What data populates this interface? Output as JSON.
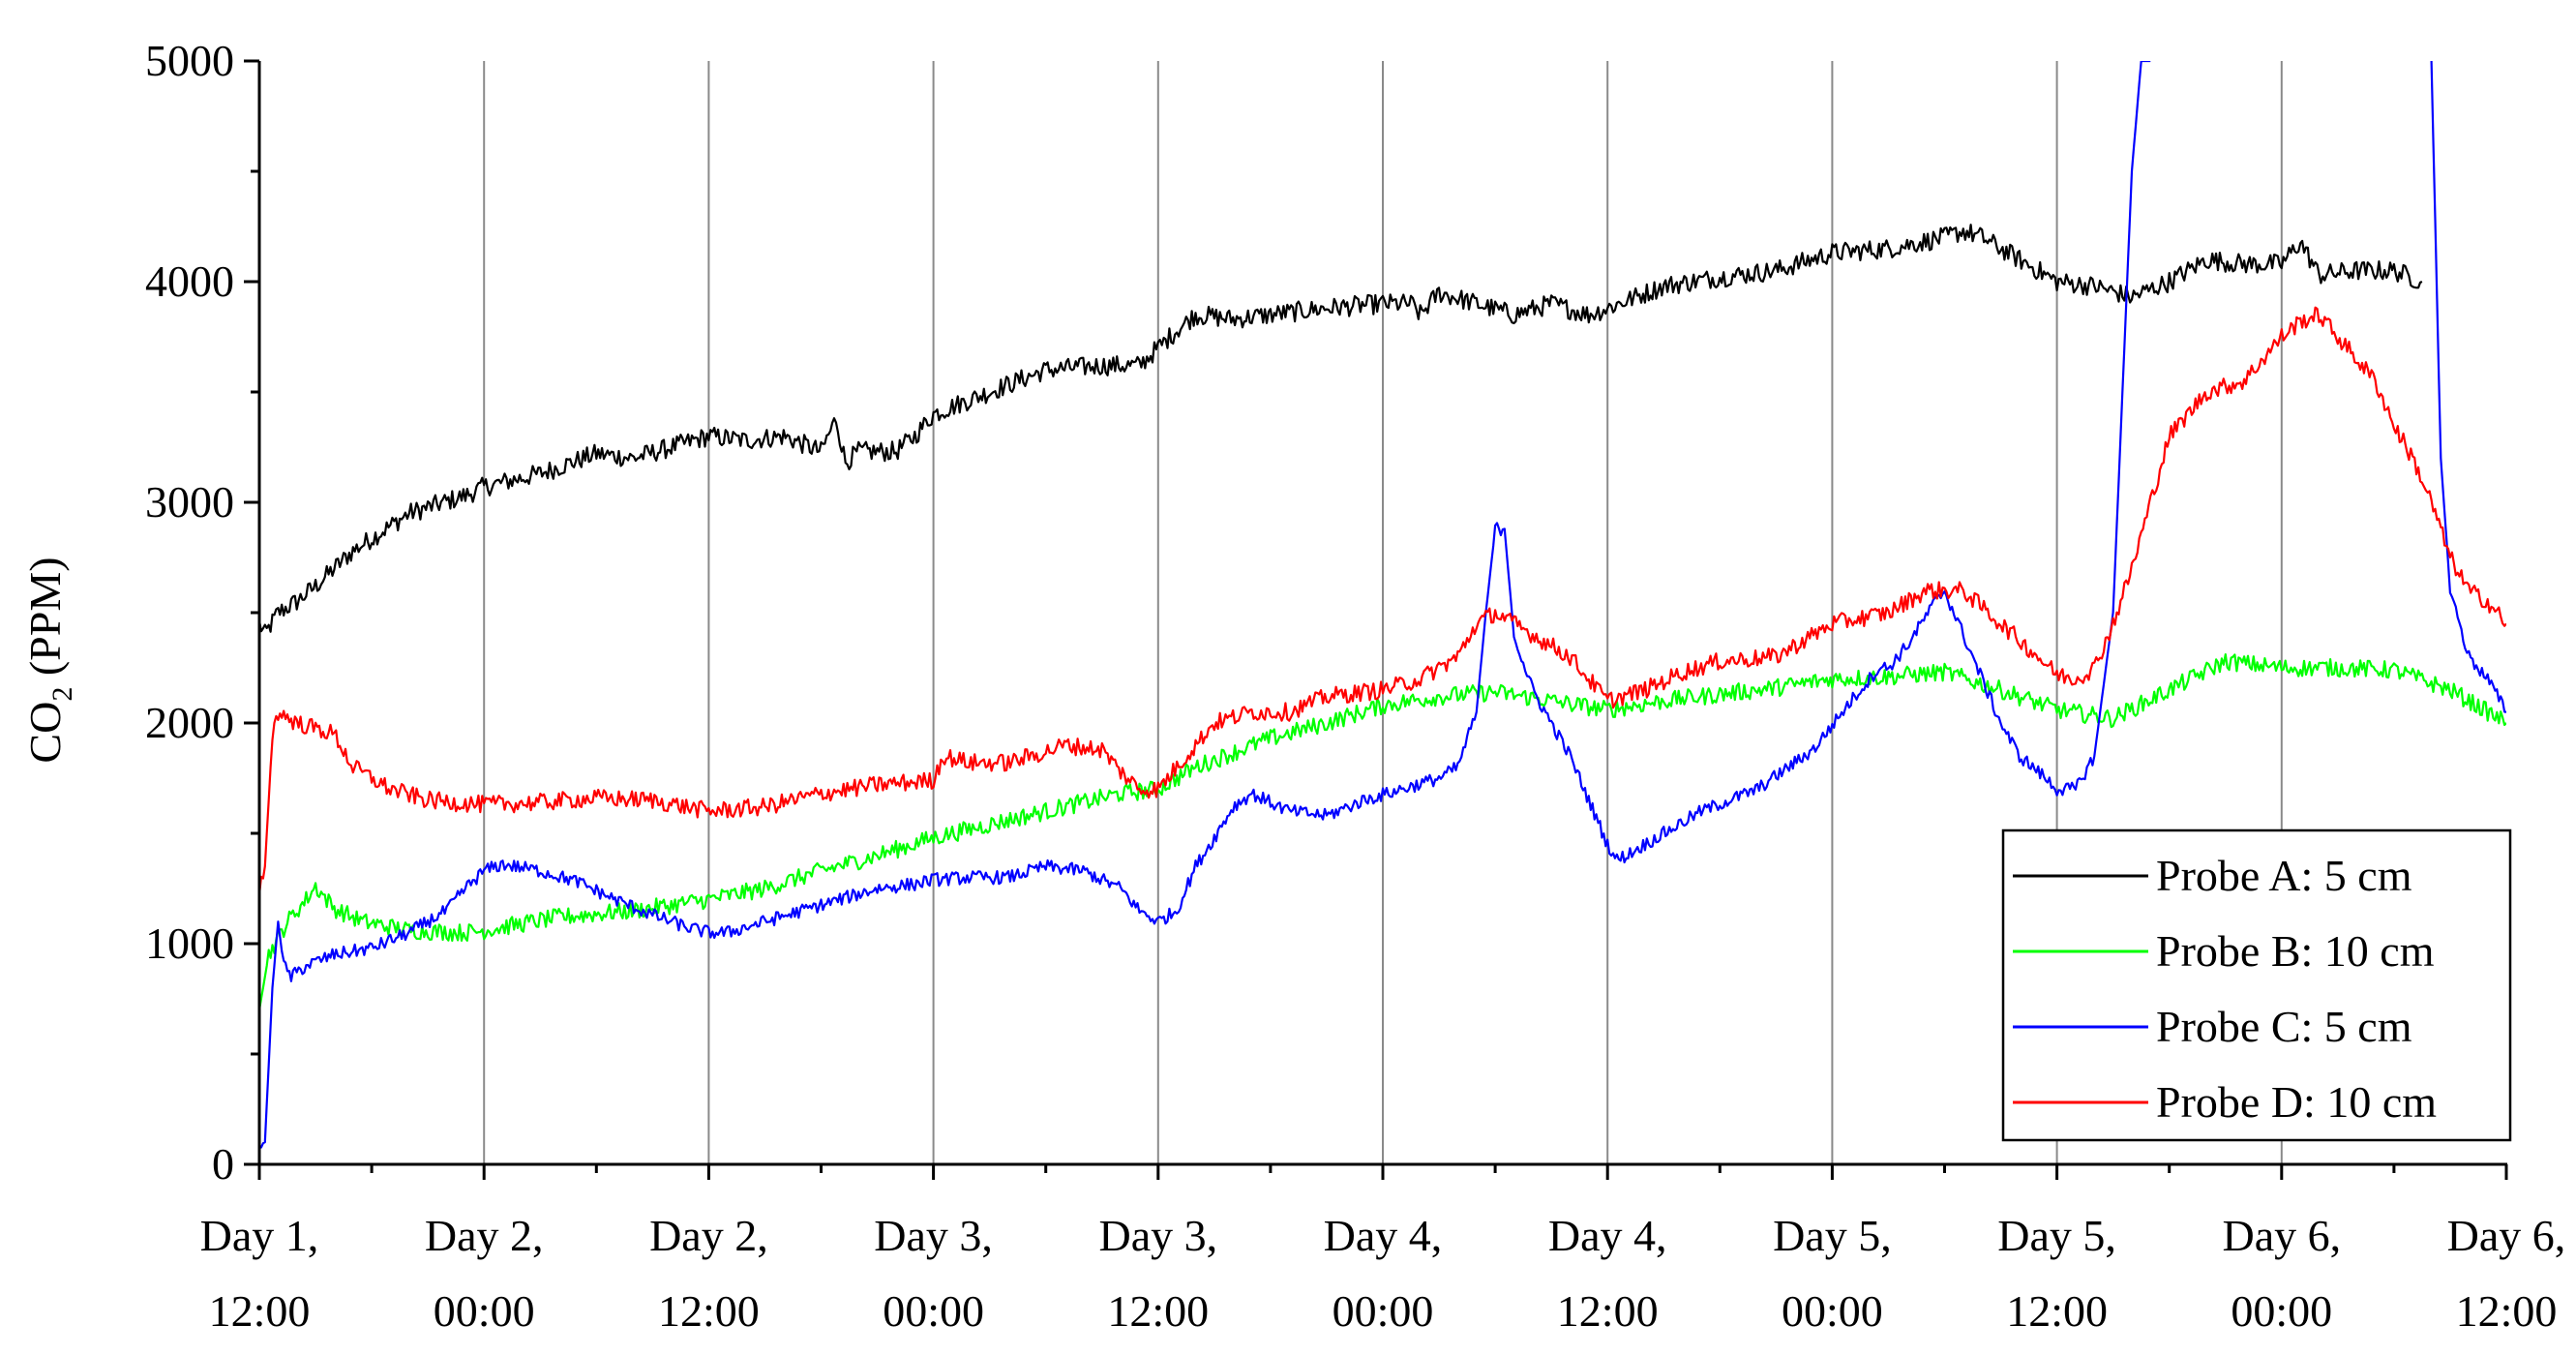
{
  "chart_data": {
    "type": "line",
    "title": "",
    "xlabel": "",
    "ylabel": "CO2 (PPM)",
    "ylabel_main": "CO",
    "ylabel_sub": "2",
    "ylabel_rest": " (PPM)",
    "ylim": [
      0,
      5000
    ],
    "xlim": [
      0,
      120
    ],
    "x_unit": "hours since Day 1, 12:00",
    "y_ticks": [
      0,
      1000,
      2000,
      3000,
      4000,
      5000
    ],
    "y_tick_labels": [
      "0",
      "1000",
      "2000",
      "3000",
      "4000",
      "5000"
    ],
    "x_ticks": [
      0,
      12,
      24,
      36,
      48,
      60,
      72,
      84,
      96,
      108,
      120
    ],
    "x_tick_labels": [
      [
        "Day 1,",
        "12:00"
      ],
      [
        "Day 2,",
        "00:00"
      ],
      [
        "Day 2,",
        "12:00"
      ],
      [
        "Day 3,",
        "00:00"
      ],
      [
        "Day 3,",
        "12:00"
      ],
      [
        "Day 4,",
        "00:00"
      ],
      [
        "Day 4,",
        "12:00"
      ],
      [
        "Day 5,",
        "00:00"
      ],
      [
        "Day 5,",
        "12:00"
      ],
      [
        "Day 6,",
        "00:00"
      ],
      [
        "Day 6,",
        "12:00"
      ]
    ],
    "vertical_gridlines": true,
    "legend_position": "bottom-right",
    "series": [
      {
        "name": "Probe A: 5 cm",
        "color": "#000000",
        "noise": 45,
        "points": [
          [
            0,
            2450
          ],
          [
            0.3,
            2400
          ],
          [
            1,
            2500
          ],
          [
            2,
            2550
          ],
          [
            3,
            2620
          ],
          [
            5,
            2780
          ],
          [
            8,
            2950
          ],
          [
            11,
            3030
          ],
          [
            12,
            3070
          ],
          [
            15,
            3130
          ],
          [
            18,
            3220
          ],
          [
            20,
            3200
          ],
          [
            22,
            3250
          ],
          [
            24,
            3300
          ],
          [
            26,
            3280
          ],
          [
            28,
            3300
          ],
          [
            30,
            3230
          ],
          [
            30.8,
            3380
          ],
          [
            31.3,
            3180
          ],
          [
            32,
            3230
          ],
          [
            34,
            3230
          ],
          [
            35,
            3300
          ],
          [
            36,
            3400
          ],
          [
            39,
            3500
          ],
          [
            42,
            3600
          ],
          [
            45,
            3620
          ],
          [
            47,
            3620
          ],
          [
            48,
            3700
          ],
          [
            49,
            3780
          ],
          [
            50,
            3850
          ],
          [
            52,
            3830
          ],
          [
            54,
            3850
          ],
          [
            57,
            3880
          ],
          [
            60,
            3900
          ],
          [
            61.5,
            3900
          ],
          [
            62,
            3850
          ],
          [
            63,
            3950
          ],
          [
            65,
            3900
          ],
          [
            67,
            3850
          ],
          [
            69,
            3900
          ],
          [
            71,
            3850
          ],
          [
            72,
            3880
          ],
          [
            75,
            3980
          ],
          [
            78,
            4020
          ],
          [
            81,
            4050
          ],
          [
            84,
            4130
          ],
          [
            87,
            4150
          ],
          [
            90,
            4200
          ],
          [
            91,
            4230
          ],
          [
            92,
            4200
          ],
          [
            94,
            4100
          ],
          [
            96,
            4000
          ],
          [
            98,
            3980
          ],
          [
            100,
            3930
          ],
          [
            102,
            4000
          ],
          [
            104,
            4100
          ],
          [
            106,
            4080
          ],
          [
            108,
            4080
          ],
          [
            109,
            4180
          ],
          [
            110,
            4030
          ],
          [
            112,
            4050
          ],
          [
            114,
            4050
          ],
          [
            115.5,
            4000
          ],
          [
            115.5,
            null
          ]
        ]
      },
      {
        "name": "Probe B: 10 cm",
        "color": "#00ff00",
        "noise": 40,
        "points": [
          [
            0,
            700
          ],
          [
            0.5,
            950
          ],
          [
            1.5,
            1100
          ],
          [
            2.5,
            1200
          ],
          [
            3,
            1260
          ],
          [
            4,
            1160
          ],
          [
            5.5,
            1100
          ],
          [
            8,
            1060
          ],
          [
            11,
            1050
          ],
          [
            12,
            1060
          ],
          [
            16,
            1120
          ],
          [
            20,
            1150
          ],
          [
            24,
            1200
          ],
          [
            27,
            1250
          ],
          [
            30,
            1330
          ],
          [
            33,
            1400
          ],
          [
            36,
            1480
          ],
          [
            39,
            1540
          ],
          [
            42,
            1600
          ],
          [
            46,
            1680
          ],
          [
            48,
            1700
          ],
          [
            50,
            1800
          ],
          [
            54,
            1930
          ],
          [
            57,
            2000
          ],
          [
            60,
            2080
          ],
          [
            63,
            2120
          ],
          [
            66,
            2140
          ],
          [
            69,
            2100
          ],
          [
            72,
            2060
          ],
          [
            75,
            2100
          ],
          [
            78,
            2130
          ],
          [
            81,
            2160
          ],
          [
            84,
            2200
          ],
          [
            87,
            2210
          ],
          [
            90,
            2230
          ],
          [
            93,
            2150
          ],
          [
            96,
            2060
          ],
          [
            99,
            2020
          ],
          [
            102,
            2150
          ],
          [
            105,
            2280
          ],
          [
            108,
            2250
          ],
          [
            111,
            2250
          ],
          [
            114,
            2240
          ],
          [
            117,
            2150
          ],
          [
            120,
            2000
          ]
        ]
      },
      {
        "name": "Probe C: 5 cm",
        "color": "#0000ff",
        "noise": 30,
        "points": [
          [
            0,
            100
          ],
          [
            0.3,
            100
          ],
          [
            0.7,
            800
          ],
          [
            1,
            1100
          ],
          [
            1.3,
            900
          ],
          [
            1.7,
            850
          ],
          [
            2.5,
            900
          ],
          [
            4,
            950
          ],
          [
            6,
            980
          ],
          [
            8,
            1050
          ],
          [
            10,
            1150
          ],
          [
            11,
            1250
          ],
          [
            12,
            1330
          ],
          [
            13,
            1360
          ],
          [
            15,
            1330
          ],
          [
            17,
            1280
          ],
          [
            19,
            1200
          ],
          [
            21,
            1130
          ],
          [
            23,
            1070
          ],
          [
            24,
            1050
          ],
          [
            25,
            1050
          ],
          [
            27,
            1100
          ],
          [
            29,
            1150
          ],
          [
            31,
            1200
          ],
          [
            33,
            1250
          ],
          [
            35,
            1270
          ],
          [
            36,
            1290
          ],
          [
            38,
            1300
          ],
          [
            40,
            1300
          ],
          [
            42,
            1350
          ],
          [
            44,
            1330
          ],
          [
            46,
            1250
          ],
          [
            47,
            1150
          ],
          [
            48,
            1100
          ],
          [
            49,
            1150
          ],
          [
            50,
            1350
          ],
          [
            51,
            1480
          ],
          [
            52,
            1620
          ],
          [
            53,
            1680
          ],
          [
            55,
            1600
          ],
          [
            57,
            1580
          ],
          [
            59,
            1650
          ],
          [
            61,
            1700
          ],
          [
            63,
            1750
          ],
          [
            64,
            1800
          ],
          [
            65,
            2050
          ],
          [
            65.5,
            2500
          ],
          [
            66,
            2880
          ],
          [
            66.5,
            2880
          ],
          [
            67,
            2400
          ],
          [
            68,
            2150
          ],
          [
            69,
            2000
          ],
          [
            70,
            1850
          ],
          [
            71,
            1650
          ],
          [
            72,
            1450
          ],
          [
            72.5,
            1380
          ],
          [
            73,
            1400
          ],
          [
            75,
            1500
          ],
          [
            77,
            1600
          ],
          [
            80,
            1700
          ],
          [
            83,
            1880
          ],
          [
            85,
            2100
          ],
          [
            86.5,
            2250
          ],
          [
            87,
            2250
          ],
          [
            88,
            2350
          ],
          [
            89.5,
            2550
          ],
          [
            90,
            2600
          ],
          [
            91,
            2400
          ],
          [
            92,
            2200
          ],
          [
            93,
            2000
          ],
          [
            94,
            1850
          ],
          [
            95,
            1780
          ],
          [
            96,
            1700
          ],
          [
            97,
            1700
          ],
          [
            98,
            1850
          ],
          [
            99,
            2500
          ],
          [
            99.5,
            3500
          ],
          [
            100,
            4500
          ],
          [
            100.5,
            5000
          ],
          [
            101,
            5000
          ],
          [
            101,
            null
          ],
          [
            116,
            5000
          ],
          [
            116.5,
            3200
          ],
          [
            117,
            2600
          ],
          [
            118,
            2300
          ],
          [
            119,
            2200
          ],
          [
            120,
            2050
          ]
        ]
      },
      {
        "name": "Probe D: 10 cm",
        "color": "#ff0000",
        "noise": 40,
        "points": [
          [
            0,
            1250
          ],
          [
            0.3,
            1350
          ],
          [
            0.7,
            1950
          ],
          [
            1,
            2050
          ],
          [
            2,
            2000
          ],
          [
            4,
            1950
          ],
          [
            5,
            1800
          ],
          [
            7,
            1700
          ],
          [
            9,
            1650
          ],
          [
            12,
            1630
          ],
          [
            15,
            1640
          ],
          [
            18,
            1660
          ],
          [
            21,
            1650
          ],
          [
            24,
            1600
          ],
          [
            27,
            1620
          ],
          [
            30,
            1680
          ],
          [
            33,
            1720
          ],
          [
            36,
            1740
          ],
          [
            36.5,
            1850
          ],
          [
            38,
            1820
          ],
          [
            40,
            1820
          ],
          [
            42,
            1870
          ],
          [
            43,
            1900
          ],
          [
            45,
            1880
          ],
          [
            46,
            1780
          ],
          [
            47,
            1700
          ],
          [
            48,
            1700
          ],
          [
            49,
            1800
          ],
          [
            51,
            2000
          ],
          [
            53,
            2050
          ],
          [
            55,
            2050
          ],
          [
            57,
            2120
          ],
          [
            60,
            2150
          ],
          [
            62,
            2200
          ],
          [
            64,
            2300
          ],
          [
            65,
            2450
          ],
          [
            66,
            2500
          ],
          [
            68,
            2400
          ],
          [
            70,
            2300
          ],
          [
            72,
            2100
          ],
          [
            74,
            2150
          ],
          [
            76,
            2230
          ],
          [
            78,
            2280
          ],
          [
            81,
            2300
          ],
          [
            84,
            2450
          ],
          [
            87,
            2500
          ],
          [
            89,
            2600
          ],
          [
            91,
            2600
          ],
          [
            93,
            2450
          ],
          [
            95,
            2300
          ],
          [
            96,
            2220
          ],
          [
            97,
            2200
          ],
          [
            98,
            2250
          ],
          [
            99,
            2450
          ],
          [
            100,
            2700
          ],
          [
            101,
            3000
          ],
          [
            102,
            3300
          ],
          [
            104,
            3500
          ],
          [
            106,
            3550
          ],
          [
            107,
            3650
          ],
          [
            108,
            3750
          ],
          [
            109,
            3820
          ],
          [
            110,
            3850
          ],
          [
            111,
            3750
          ],
          [
            112,
            3650
          ],
          [
            113,
            3550
          ],
          [
            114,
            3350
          ],
          [
            115,
            3200
          ],
          [
            116,
            3000
          ],
          [
            117,
            2750
          ],
          [
            118,
            2600
          ],
          [
            119,
            2550
          ],
          [
            120,
            2450
          ]
        ]
      }
    ]
  }
}
